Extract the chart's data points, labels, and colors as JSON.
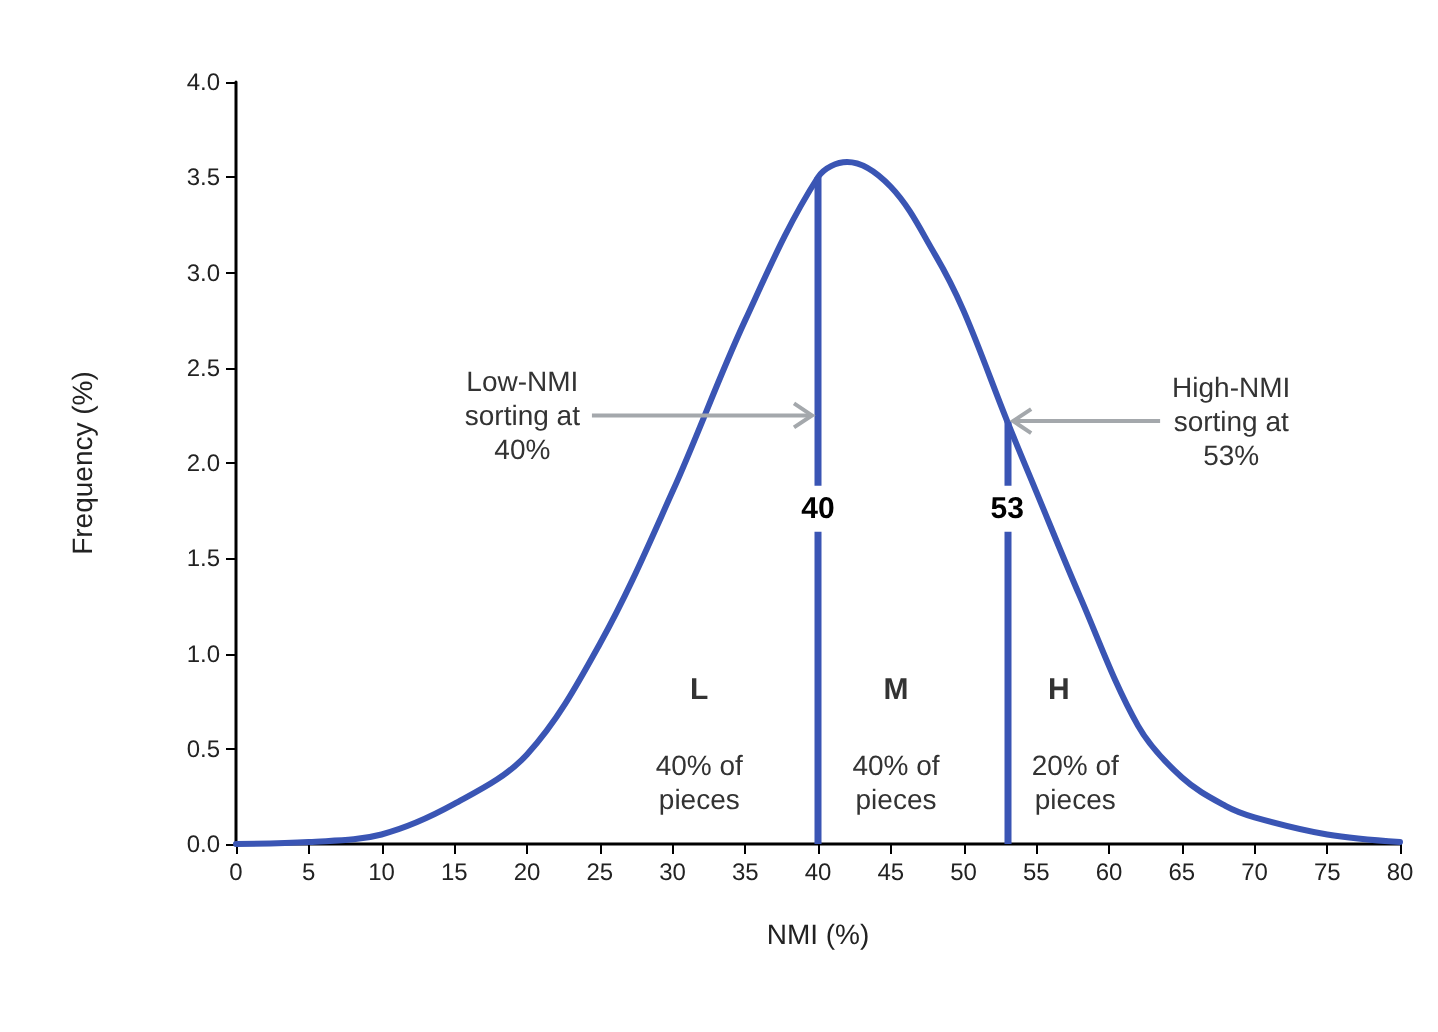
{
  "chart_data": {
    "type": "line",
    "xlabel": "NMI (%)",
    "ylabel": "Frequency (%)",
    "x": [
      0,
      5,
      10,
      15,
      20,
      25,
      30,
      35,
      40,
      42,
      45,
      48,
      50,
      53,
      55,
      58,
      62,
      65,
      68,
      70,
      75,
      80
    ],
    "series": [
      {
        "color": "#3a55b4",
        "values": [
          0,
          0.01,
          0.05,
          0.21,
          0.47,
          1.05,
          1.85,
          2.75,
          3.5,
          3.58,
          3.45,
          3.1,
          2.8,
          2.22,
          1.85,
          1.3,
          0.62,
          0.35,
          0.2,
          0.14,
          0.05,
          0.01
        ]
      }
    ],
    "xlim": [
      0,
      80
    ],
    "xticks": [
      0,
      5,
      10,
      15,
      20,
      25,
      30,
      35,
      40,
      45,
      50,
      55,
      60,
      65,
      70,
      75,
      80
    ],
    "ylim": [
      0,
      4
    ],
    "yticks": [
      {
        "value": 0,
        "label": "0.0"
      },
      {
        "value": 0.5,
        "label": "0.5"
      },
      {
        "value": 1,
        "label": "1.0"
      },
      {
        "value": 1.5,
        "label": "1.5"
      },
      {
        "value": 2,
        "label": "2.0"
      },
      {
        "value": 2.5,
        "label": "2.5"
      },
      {
        "value": 3,
        "label": "3.0"
      },
      {
        "value": 3.5,
        "label": "3.5"
      },
      {
        "value": 4,
        "label": "4.0"
      }
    ],
    "ref_lines": [
      {
        "axis": "x",
        "value": 40,
        "label": "40",
        "color": "#3a55b4"
      },
      {
        "axis": "x",
        "value": 53,
        "label": "53",
        "color": "#3a55b4"
      }
    ],
    "annotations": [
      {
        "text": "Low-NMI\nsorting at\n40%",
        "x": 40,
        "y": 2.25
      },
      {
        "text": "High-NMI\nsorting at\n53%",
        "x": 53,
        "y": 2.22
      },
      "L",
      "40% of\npieces",
      "M",
      "40% of\npieces",
      "H",
      "20% of\npieces"
    ],
    "grid": false,
    "marker": "none",
    "line_style": "solid"
  }
}
